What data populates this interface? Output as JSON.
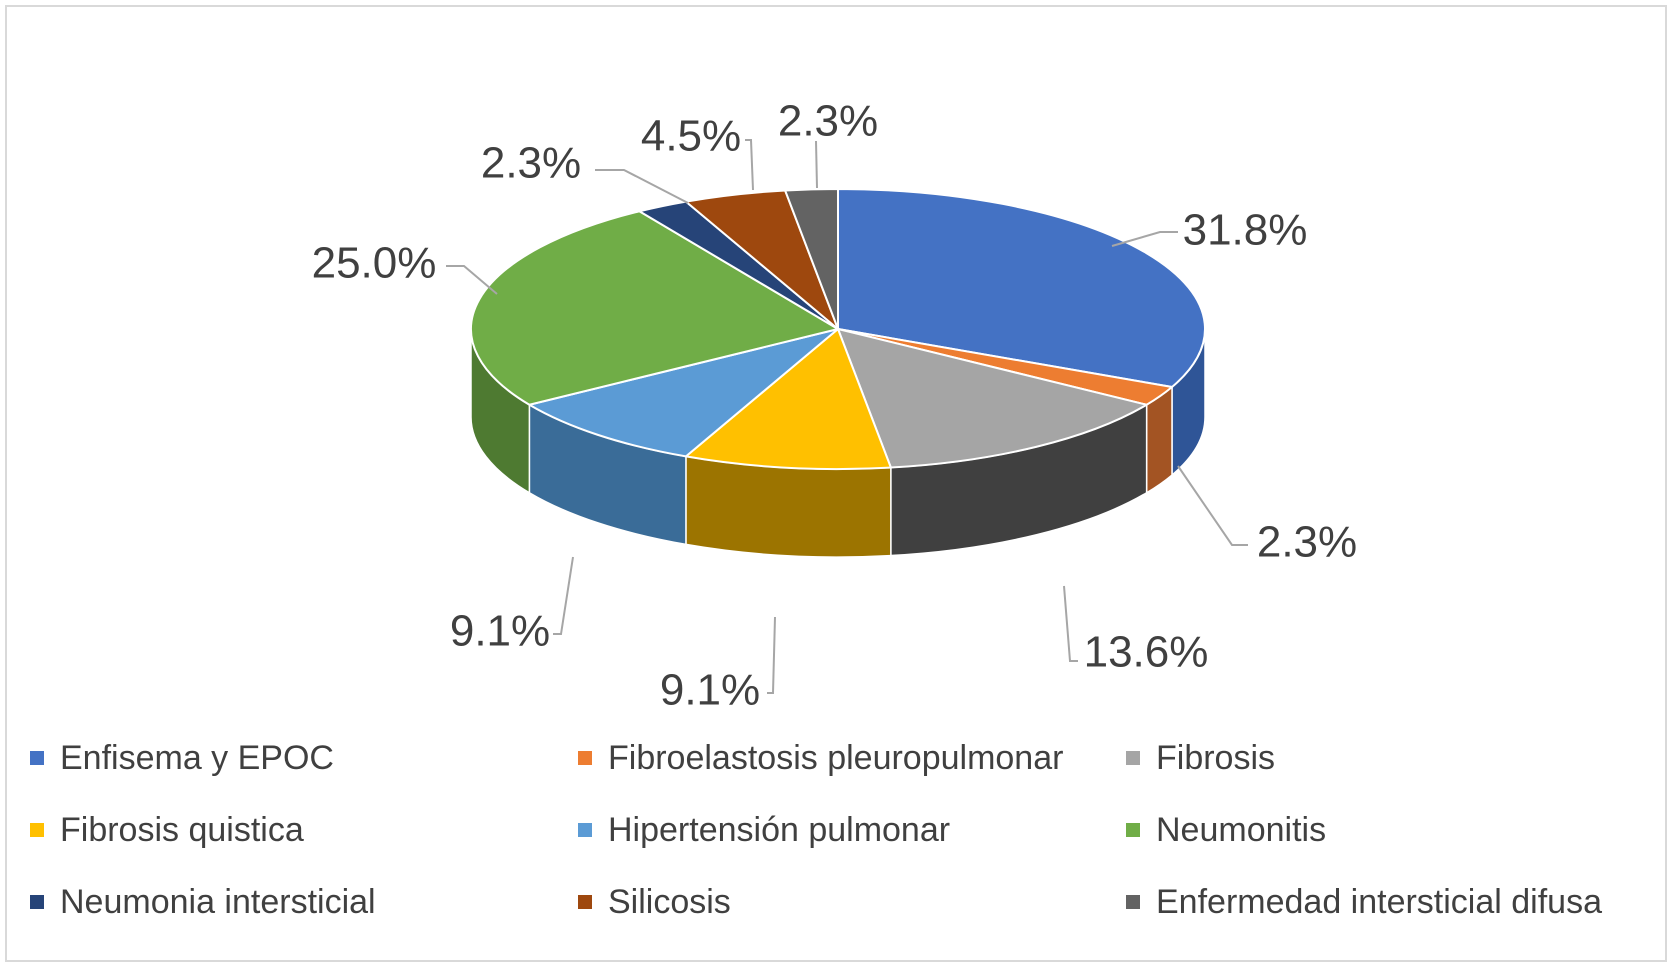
{
  "chart_data": {
    "type": "pie",
    "title": "",
    "slices": [
      {
        "label": "Enfisema y EPOC",
        "value": 31.8,
        "display": "31.8%",
        "color": "#4472C4",
        "side": "#2F5597"
      },
      {
        "label": "Fibroelastosis pleuropulmonar",
        "value": 2.3,
        "display": "2.3%",
        "color": "#ED7D31",
        "side": "#A35423"
      },
      {
        "label": "Fibrosis",
        "value": 13.6,
        "display": "13.6%",
        "color": "#A5A5A5",
        "side": "#404040"
      },
      {
        "label": "Fibrosis quistica",
        "value": 9.1,
        "display": "9.1%",
        "color": "#FFC000",
        "side": "#9C7400"
      },
      {
        "label": "Hipertensión pulmonar",
        "value": 9.1,
        "display": "9.1%",
        "color": "#5B9BD5",
        "side": "#3A6C98"
      },
      {
        "label": "Neumonitis",
        "value": 25.0,
        "display": "25.0%",
        "color": "#70AD47",
        "side": "#4E7A31"
      },
      {
        "label": "Neumonia intersticial",
        "value": 2.3,
        "display": "2.3%",
        "color": "#264478",
        "side": "#1A2F55"
      },
      {
        "label": "Silicosis",
        "value": 4.5,
        "display": "4.5%",
        "color": "#9E480E",
        "side": "#6E320A"
      },
      {
        "label": "Enfermedad intersticial difusa",
        "value": 2.3,
        "display": "2.3%",
        "color": "#636363",
        "side": "#3F3F3F"
      }
    ],
    "legend_position": "bottom"
  }
}
